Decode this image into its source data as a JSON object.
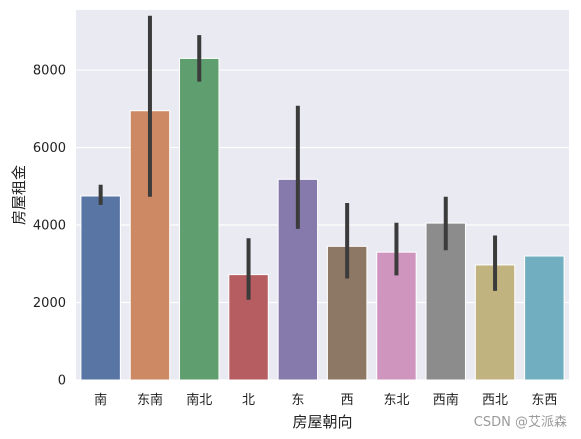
{
  "chart_data": {
    "type": "bar",
    "xlabel": "房屋朝向",
    "ylabel": "房屋租金",
    "categories": [
      "南",
      "东南",
      "南北",
      "北",
      "东",
      "西",
      "东北",
      "西南",
      "西北",
      "东西"
    ],
    "values": [
      4750,
      6950,
      8300,
      2720,
      5180,
      3450,
      3300,
      4050,
      2970,
      3200
    ],
    "error_low": [
      4520,
      4730,
      7700,
      2070,
      3900,
      2620,
      2700,
      3350,
      2300,
      null
    ],
    "error_high": [
      5040,
      9400,
      8900,
      3660,
      7080,
      4570,
      4060,
      4730,
      3730,
      null
    ],
    "ylim": [
      0,
      9550
    ],
    "yticks": [
      0,
      2000,
      4000,
      6000,
      8000
    ],
    "grid": true,
    "background": "#EAEAF2",
    "bar_colors": [
      "#5875A4",
      "#CC8963",
      "#5F9E6E",
      "#B55D60",
      "#857AAB",
      "#8D7866",
      "#D095BF",
      "#8C8C8C",
      "#C1B37F",
      "#71AEC0"
    ],
    "error_color": "#3b3b3b"
  },
  "watermark": "CSDN @艾派森"
}
